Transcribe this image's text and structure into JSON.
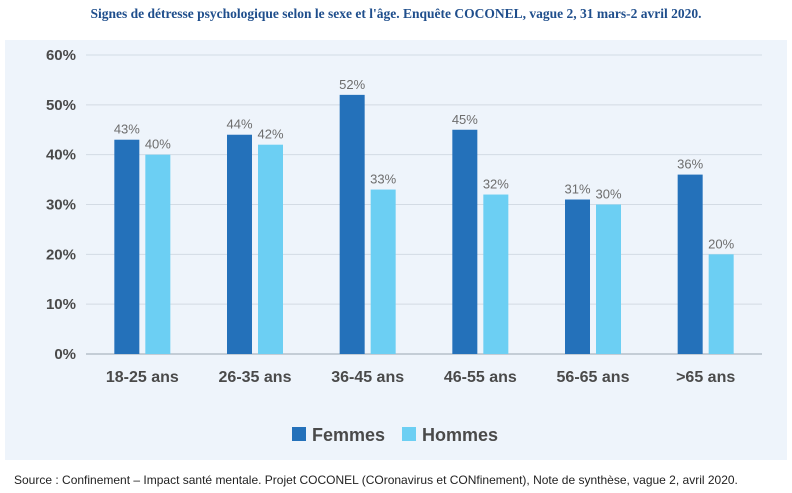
{
  "chart_data": {
    "type": "bar",
    "title": "Signes de détresse psychologique selon le sexe et l'âge. Enquête COCONEL, vague 2, 31 mars-2 avril 2020.",
    "xlabel": "",
    "ylabel": "",
    "ylim": [
      0,
      60
    ],
    "yticks": [
      "0%",
      "10%",
      "20%",
      "30%",
      "40%",
      "50%",
      "60%"
    ],
    "categories": [
      "18-25 ans",
      "26-35 ans",
      "36-45 ans",
      "46-55 ans",
      "56-65 ans",
      ">65 ans"
    ],
    "series": [
      {
        "name": "Femmes",
        "color": "#2471ba",
        "values": [
          43,
          44,
          52,
          45,
          31,
          36
        ],
        "labels": [
          "43%",
          "44%",
          "52%",
          "45%",
          "31%",
          "36%"
        ]
      },
      {
        "name": "Hommes",
        "color": "#6ccff3",
        "values": [
          40,
          42,
          33,
          32,
          30,
          20
        ],
        "labels": [
          "40%",
          "42%",
          "33%",
          "32%",
          "30%",
          "20%"
        ]
      }
    ],
    "grid": true,
    "legend_position": "bottom-center"
  },
  "source": "Source : Confinement – Impact santé mentale. Projet COCONEL (COronavirus et CONfinement), Note de synthèse, vague 2, avril 2020."
}
